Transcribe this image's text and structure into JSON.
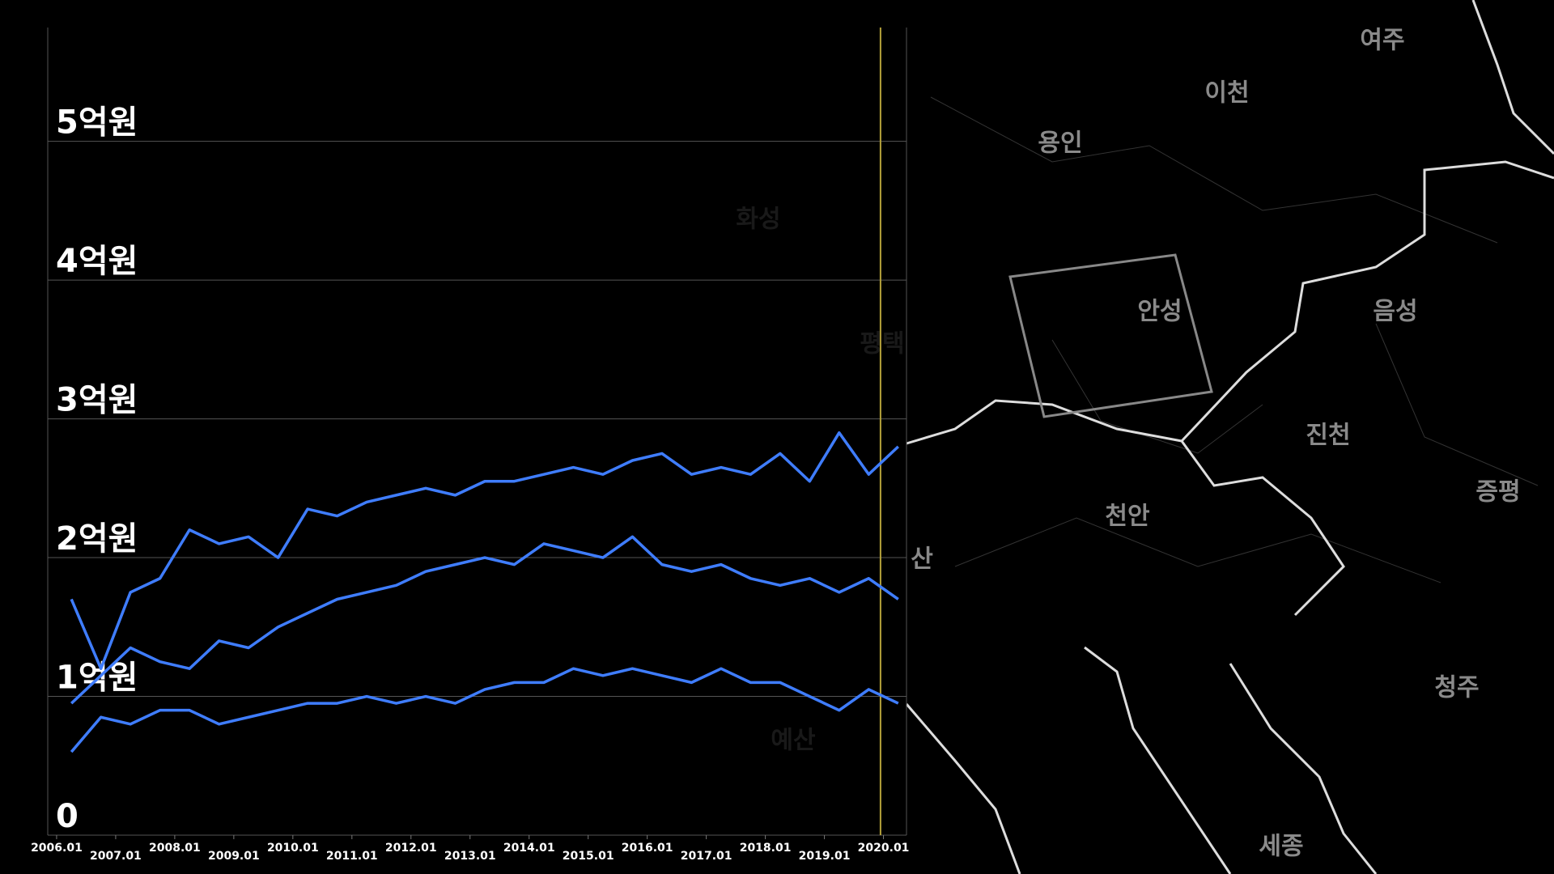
{
  "map": {
    "labels": [
      "여주",
      "이천",
      "용인",
      "화성",
      "안성",
      "음성",
      "진천",
      "천안",
      "증평",
      "청주",
      "세종",
      "예산",
      "평택",
      "산"
    ]
  },
  "chart_data": {
    "type": "line",
    "xlim": [
      2005.85,
      2020.39
    ],
    "xticks": [
      {
        "value": 2006,
        "label": "2006.01"
      },
      {
        "value": 2007,
        "label": "2007.01"
      },
      {
        "value": 2008,
        "label": "2008.01"
      },
      {
        "value": 2009,
        "label": "2009.01"
      },
      {
        "value": 2010,
        "label": "2010.01"
      },
      {
        "value": 2011,
        "label": "2011.01"
      },
      {
        "value": 2012,
        "label": "2012.01"
      },
      {
        "value": 2013,
        "label": "2013.01"
      },
      {
        "value": 2014,
        "label": "2014.01"
      },
      {
        "value": 2015,
        "label": "2015.01"
      },
      {
        "value": 2016,
        "label": "2016.01"
      },
      {
        "value": 2017,
        "label": "2017.01"
      },
      {
        "value": 2018,
        "label": "2018.01"
      },
      {
        "value": 2019,
        "label": "2019.01"
      },
      {
        "value": 2020,
        "label": "2020.01"
      }
    ],
    "ylim": [
      0,
      5.82
    ],
    "yticks": [
      0,
      {
        "value": 1,
        "label": "1억원"
      },
      {
        "value": 2,
        "label": "2억원"
      },
      {
        "value": 3,
        "label": "3억원"
      },
      {
        "value": 4,
        "label": "4억원"
      },
      {
        "value": 5,
        "label": "5억원"
      }
    ],
    "grid": true,
    "vline": 2019.95,
    "vline_color": "#b5a23a",
    "x": [
      2006.25,
      2006.75,
      2007.25,
      2007.75,
      2008.25,
      2008.75,
      2009.25,
      2009.75,
      2010.25,
      2010.75,
      2011.25,
      2011.75,
      2012.25,
      2012.75,
      2013.25,
      2013.75,
      2014.25,
      2014.75,
      2015.25,
      2015.75,
      2016.25,
      2016.75,
      2017.25,
      2017.75,
      2018.25,
      2018.75,
      2019.25,
      2019.75,
      2020.25
    ],
    "series": [
      {
        "color": "#3f7dff",
        "values": [
          1.7,
          1.2,
          1.75,
          1.85,
          2.2,
          2.1,
          2.15,
          2.0,
          2.35,
          2.3,
          2.4,
          2.45,
          2.5,
          2.45,
          2.55,
          2.55,
          2.6,
          2.65,
          2.6,
          2.7,
          2.75,
          2.6,
          2.65,
          2.6,
          2.75,
          2.55,
          2.9,
          2.6,
          2.8
        ]
      },
      {
        "color": "#3f7dff",
        "values": [
          0.95,
          1.15,
          1.35,
          1.25,
          1.2,
          1.4,
          1.35,
          1.5,
          1.6,
          1.7,
          1.75,
          1.8,
          1.9,
          1.95,
          2.0,
          1.95,
          2.1,
          2.05,
          2.0,
          2.15,
          1.95,
          1.9,
          1.95,
          1.85,
          1.8,
          1.85,
          1.75,
          1.85,
          1.7
        ]
      },
      {
        "color": "#3f7dff",
        "values": [
          0.6,
          0.85,
          0.8,
          0.9,
          0.9,
          0.8,
          0.85,
          0.9,
          0.95,
          0.95,
          1.0,
          0.95,
          1.0,
          0.95,
          1.05,
          1.1,
          1.1,
          1.2,
          1.15,
          1.2,
          1.15,
          1.1,
          1.2,
          1.1,
          1.1,
          1.0,
          0.9,
          1.05,
          0.95
        ]
      }
    ]
  }
}
